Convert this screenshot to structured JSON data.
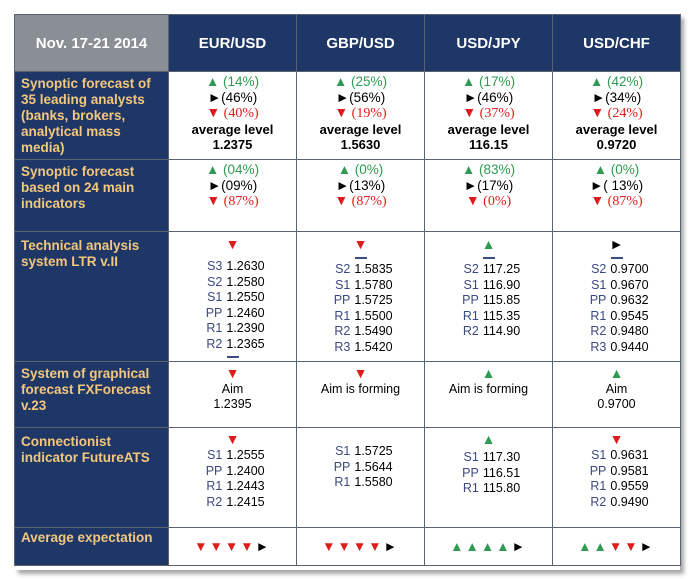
{
  "header": {
    "date": "Nov. 17-21 2014",
    "pairs": [
      "EUR/USD",
      "GBP/USD",
      "USD/JPY",
      "USD/CHF"
    ]
  },
  "rows": {
    "synoptic35": {
      "label": "Synoptic forecast of 35 leading analysts (banks, brokers, analytical mass media)",
      "cells": [
        {
          "up": "▲ (14%)",
          "side": "►(46%)",
          "down": "▼ (40%)",
          "avg_label": "average level",
          "avg_value": "1.2375"
        },
        {
          "up": "▲ (25%)",
          "side": "►(56%)",
          "down": "▼ (19%)",
          "avg_label": "average level",
          "avg_value": "1.5630"
        },
        {
          "up": "▲ (17%)",
          "side": "►(46%)",
          "down": "▼ (37%)",
          "avg_label": "average level",
          "avg_value": "116.15"
        },
        {
          "up": "▲ (42%)",
          "side": "►(34%)",
          "down": "▼ (24%)",
          "avg_label": "average level",
          "avg_value": "0.9720"
        }
      ]
    },
    "indicators24": {
      "label": "Synoptic forecast based on 24 main indicators",
      "cells": [
        {
          "up": "▲ (04%)",
          "side": "►(09%)",
          "down": "▼ (87%)"
        },
        {
          "up": "▲ (0%)",
          "side": "►(13%)",
          "down": "▼ (87%)"
        },
        {
          "up": "▲ (83%)",
          "side": "►(17%)",
          "down": "▼ (0%)"
        },
        {
          "up": "▲ (0%)",
          "side": "►( 13%)",
          "down": "▼ (87%)"
        }
      ]
    },
    "technical": {
      "label": "Technical analysis system LTR v.II",
      "cells": [
        {
          "mark": "▼",
          "mark_color": "#e01b1b",
          "levels": [
            [
              "S3",
              "1.2630"
            ],
            [
              "S2",
              "1.2580"
            ],
            [
              "S1",
              "1.2550"
            ],
            [
              "PP",
              "1.2460"
            ],
            [
              "R1",
              "1.2390"
            ],
            [
              "R2",
              "1.2365"
            ]
          ],
          "dash_pos": "after"
        },
        {
          "mark": "▼",
          "mark_color": "#e01b1b",
          "levels": [
            [
              "S2",
              "1.5835"
            ],
            [
              "S1",
              "1.5780"
            ],
            [
              "PP",
              "1.5725"
            ],
            [
              "R1",
              "1.5500"
            ],
            [
              "R2",
              "1.5490"
            ],
            [
              "R3",
              "1.5420"
            ]
          ],
          "dash_pos": "before"
        },
        {
          "mark": "▲",
          "mark_color": "#2e9a52",
          "levels": [
            [
              "S2",
              "117.25"
            ],
            [
              "S1",
              "116.90"
            ],
            [
              "PP",
              "115.85"
            ],
            [
              "R1",
              "115.35"
            ],
            [
              "R2",
              "114.90"
            ]
          ],
          "dash_pos": "before"
        },
        {
          "mark": "►",
          "mark_color": "#000000",
          "levels": [
            [
              "S2",
              "0.9700"
            ],
            [
              "S1",
              "0.9670"
            ],
            [
              "PP",
              "0.9632"
            ],
            [
              "R1",
              "0.9545"
            ],
            [
              "R2",
              "0.9480"
            ],
            [
              "R3",
              "0.9440"
            ]
          ],
          "dash_pos": "before"
        }
      ]
    },
    "graphical": {
      "label": "System of graphical forecast FXForecast v.23",
      "cells": [
        {
          "mark": "▼",
          "mark_color": "#e01b1b",
          "line1": "Aim",
          "line2": "1.2395"
        },
        {
          "mark": "▼",
          "mark_color": "#e01b1b",
          "line1": "Aim is forming",
          "line2": ""
        },
        {
          "mark": "▲",
          "mark_color": "#2e9a52",
          "line1": "Aim is forming",
          "line2": ""
        },
        {
          "mark": "▲",
          "mark_color": "#2e9a52",
          "line1": "Aim",
          "line2": "0.9700"
        }
      ]
    },
    "connectionist": {
      "label": "Connectionist indicator FutureATS",
      "cells": [
        {
          "mark": "▼",
          "mark_color": "#e01b1b",
          "levels": [
            [
              "S1",
              "1.2555"
            ],
            [
              "PP",
              "1.2400"
            ],
            [
              "R1",
              "1.2443"
            ],
            [
              "R2",
              "1.2415"
            ]
          ]
        },
        {
          "mark": "",
          "mark_color": "#000000",
          "levels": [
            [
              "S1",
              "1.5725"
            ],
            [
              "PP",
              "1.5644"
            ],
            [
              "R1",
              "1.5580"
            ]
          ]
        },
        {
          "mark": "▲",
          "mark_color": "#2e9a52",
          "levels": [
            [
              "S1",
              "117.30"
            ],
            [
              "PP",
              "116.51"
            ],
            [
              "R1",
              "115.80"
            ]
          ]
        },
        {
          "mark": "▼",
          "mark_color": "#e01b1b",
          "levels": [
            [
              "S1",
              "0.9631"
            ],
            [
              "PP",
              "0.9581"
            ],
            [
              "R1",
              "0.9559"
            ],
            [
              "R2",
              "0.9490"
            ]
          ]
        }
      ]
    },
    "average": {
      "label": "Average expectation",
      "cells": [
        [
          [
            "▼",
            "#e01b1b"
          ],
          [
            "▼",
            "#e01b1b"
          ],
          [
            "▼",
            "#e01b1b"
          ],
          [
            "▼",
            "#e01b1b"
          ],
          [
            "►",
            "#000000"
          ]
        ],
        [
          [
            "▼",
            "#e01b1b"
          ],
          [
            "▼",
            "#e01b1b"
          ],
          [
            "▼",
            "#e01b1b"
          ],
          [
            "▼",
            "#e01b1b"
          ],
          [
            "►",
            "#000000"
          ]
        ],
        [
          [
            "▲",
            "#2e9a52"
          ],
          [
            "▲",
            "#2e9a52"
          ],
          [
            "▲",
            "#2e9a52"
          ],
          [
            "▲",
            "#2e9a52"
          ],
          [
            "►",
            "#000000"
          ]
        ],
        [
          [
            "▲",
            "#2e9a52"
          ],
          [
            "▲",
            "#2e9a52"
          ],
          [
            "▼",
            "#e01b1b"
          ],
          [
            "▼",
            "#e01b1b"
          ],
          [
            "►",
            "#000000"
          ]
        ]
      ]
    }
  },
  "colors": {
    "header_bg": "#1f3766",
    "date_bg": "#8a8f96",
    "label_text": "#f3c77d",
    "up": "#2e9a52",
    "down": "#e01b1b"
  }
}
